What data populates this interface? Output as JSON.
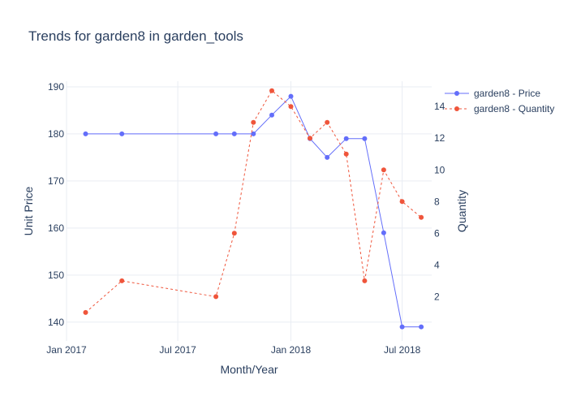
{
  "chart_data": {
    "type": "line",
    "title": "Trends for garden8 in garden_tools",
    "xlabel": "Month/Year",
    "ylabel": "Unit Price",
    "y2label": "Quantity",
    "xlim": [
      "2017-01-01",
      "2018-08-18"
    ],
    "ylim": [
      136.0,
      191.2
    ],
    "y2lim": [
      -0.8,
      15.6
    ],
    "x_ticks": [
      {
        "value": "2017-01-01",
        "label": "Jan 2017"
      },
      {
        "value": "2017-07-01",
        "label": "Jul 2017"
      },
      {
        "value": "2018-01-01",
        "label": "Jan 2018"
      },
      {
        "value": "2018-07-01",
        "label": "Jul 2018"
      }
    ],
    "y_ticks": [
      140,
      150,
      160,
      170,
      180,
      190
    ],
    "y2_ticks": [
      2,
      4,
      6,
      8,
      10,
      12,
      14
    ],
    "grid": true,
    "legend_position": "top-right",
    "series": [
      {
        "name": "garden8 - Price",
        "axis": "y",
        "color": "#636efa",
        "dash": "solid",
        "x": [
          "2017-02-01",
          "2017-04-01",
          "2017-09-01",
          "2017-10-01",
          "2017-11-01",
          "2017-12-01",
          "2018-01-01",
          "2018-02-01",
          "2018-03-01",
          "2018-04-01",
          "2018-05-01",
          "2018-06-01",
          "2018-07-01",
          "2018-08-01"
        ],
        "values": [
          180,
          180,
          180,
          180,
          180,
          184,
          188,
          179,
          175,
          179,
          179,
          159,
          139,
          139
        ]
      },
      {
        "name": "garden8 - Quantity",
        "axis": "y2",
        "color": "#ef553b",
        "dash": "dot",
        "x": [
          "2017-02-01",
          "2017-04-01",
          "2017-09-01",
          "2017-10-01",
          "2017-11-01",
          "2017-12-01",
          "2018-01-01",
          "2018-02-01",
          "2018-03-01",
          "2018-04-01",
          "2018-05-01",
          "2018-06-01",
          "2018-07-01",
          "2018-08-01"
        ],
        "values": [
          1,
          3,
          2,
          6,
          13,
          15,
          14,
          12,
          13,
          11,
          3,
          10,
          8,
          7
        ]
      }
    ]
  }
}
